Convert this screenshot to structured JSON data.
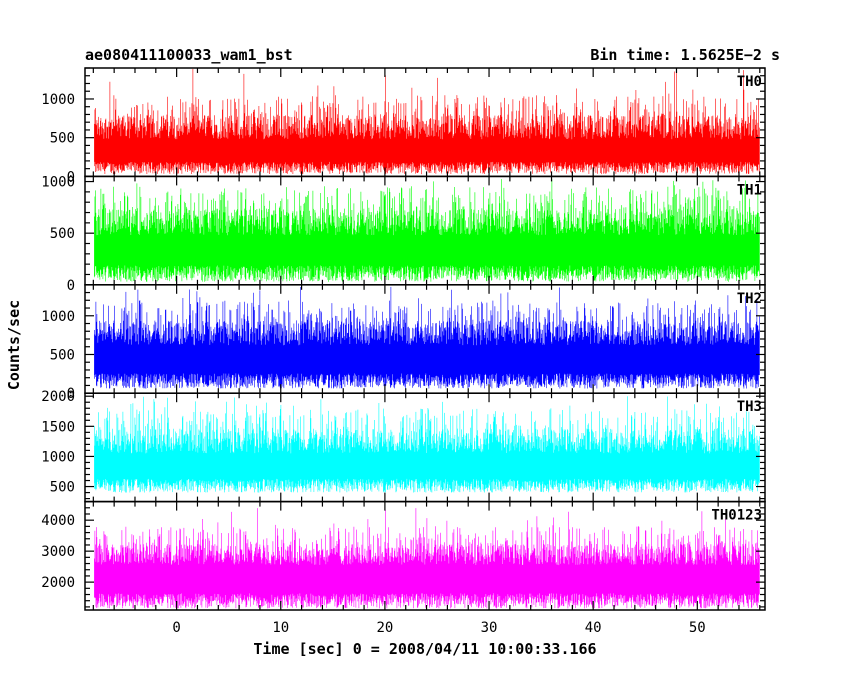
{
  "header": {
    "left_title": "ae080411100033_wam1_bst",
    "right_title": "Bin time: 1.5625E−2 s"
  },
  "axes": {
    "ylabel": "Counts/sec",
    "xlabel": "Time [sec] 0 = 2008/04/11 10:00:33.166",
    "xlim": [
      -8.8,
      56.5
    ],
    "xticks": [
      0,
      10,
      20,
      30,
      40,
      50
    ],
    "xtick_labels": [
      "0",
      "10",
      "20",
      "30",
      "40",
      "50"
    ]
  },
  "chart_data": [
    {
      "type": "line",
      "name": "TH0",
      "color": "#ff0000",
      "ylim": [
        0,
        1400
      ],
      "yticks": [
        0,
        500,
        1000
      ],
      "ytick_labels": [
        "0",
        "500",
        "1000"
      ],
      "x_range": [
        -7.9,
        56.0
      ],
      "baseline_low": 30,
      "mean": 480,
      "typical_max": 1050,
      "peak_max": 1400
    },
    {
      "type": "line",
      "name": "TH1",
      "color": "#00ff00",
      "ylim": [
        0,
        1050
      ],
      "yticks": [
        0,
        500,
        1000
      ],
      "ytick_labels": [
        "0",
        "500",
        "1000"
      ],
      "x_range": [
        -7.9,
        56.0
      ],
      "baseline_low": 30,
      "mean": 480,
      "typical_max": 950,
      "peak_max": 1050
    },
    {
      "type": "line",
      "name": "TH2",
      "color": "#0000ff",
      "ylim": [
        0,
        1400
      ],
      "yticks": [
        0,
        500,
        1000
      ],
      "ytick_labels": [
        "0",
        "500",
        "1000"
      ],
      "x_range": [
        -7.9,
        56.0
      ],
      "baseline_low": 60,
      "mean": 620,
      "typical_max": 1200,
      "peak_max": 1400
    },
    {
      "type": "line",
      "name": "TH3",
      "color": "#00ffff",
      "ylim": [
        250,
        2050
      ],
      "yticks": [
        500,
        1000,
        1500,
        2000
      ],
      "ytick_labels": [
        "500",
        "1000",
        "1500",
        "2000"
      ],
      "x_range": [
        -7.9,
        56.0
      ],
      "baseline_low": 400,
      "mean": 1050,
      "typical_max": 1800,
      "peak_max": 2000
    },
    {
      "type": "line",
      "name": "TH0123",
      "color": "#ff00ff",
      "ylim": [
        1100,
        4600
      ],
      "yticks": [
        2000,
        3000,
        4000
      ],
      "ytick_labels": [
        "2000",
        "3000",
        "4000"
      ],
      "x_range": [
        -7.9,
        56.0
      ],
      "baseline_low": 1150,
      "mean": 2550,
      "typical_max": 3800,
      "peak_max": 4400
    }
  ]
}
